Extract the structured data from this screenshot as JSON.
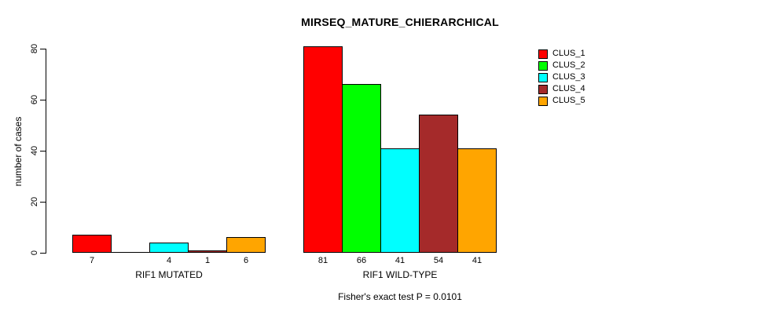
{
  "title": "MIRSEQ_MATURE_CHIERARCHICAL",
  "subtitle": "Fisher's exact test P = 0.0101",
  "y_axis": {
    "label": "number of cases",
    "tick_labels": [
      "0",
      "20",
      "40",
      "60",
      "80"
    ]
  },
  "chart_data": {
    "type": "bar",
    "title": "MIRSEQ_MATURE_CHIERARCHICAL",
    "xlabel": "",
    "ylabel": "number of cases",
    "ylim": [
      0,
      80
    ],
    "yticks": [
      0,
      20,
      40,
      60,
      80
    ],
    "grid": false,
    "legend_position": "top-right",
    "series_names": [
      "CLUS_1",
      "CLUS_2",
      "CLUS_3",
      "CLUS_4",
      "CLUS_5"
    ],
    "series_colors": [
      "#FF0000",
      "#00FF00",
      "#00FFFF",
      "#A52A2A",
      "#FFA500"
    ],
    "groups": [
      {
        "label": "RIF1 MUTATED",
        "values": [
          7,
          0,
          4,
          1,
          6
        ],
        "bar_labels": [
          "7",
          "",
          "4",
          "1",
          "6"
        ]
      },
      {
        "label": "RIF1 WILD-TYPE",
        "values": [
          81,
          66,
          41,
          54,
          41
        ],
        "bar_labels": [
          "81",
          "66",
          "41",
          "54",
          "41"
        ]
      }
    ],
    "annotation": "Fisher's exact test P = 0.0101"
  },
  "colors": {
    "axis": "#000000",
    "text": "#000000",
    "background": "#FFFFFF"
  }
}
